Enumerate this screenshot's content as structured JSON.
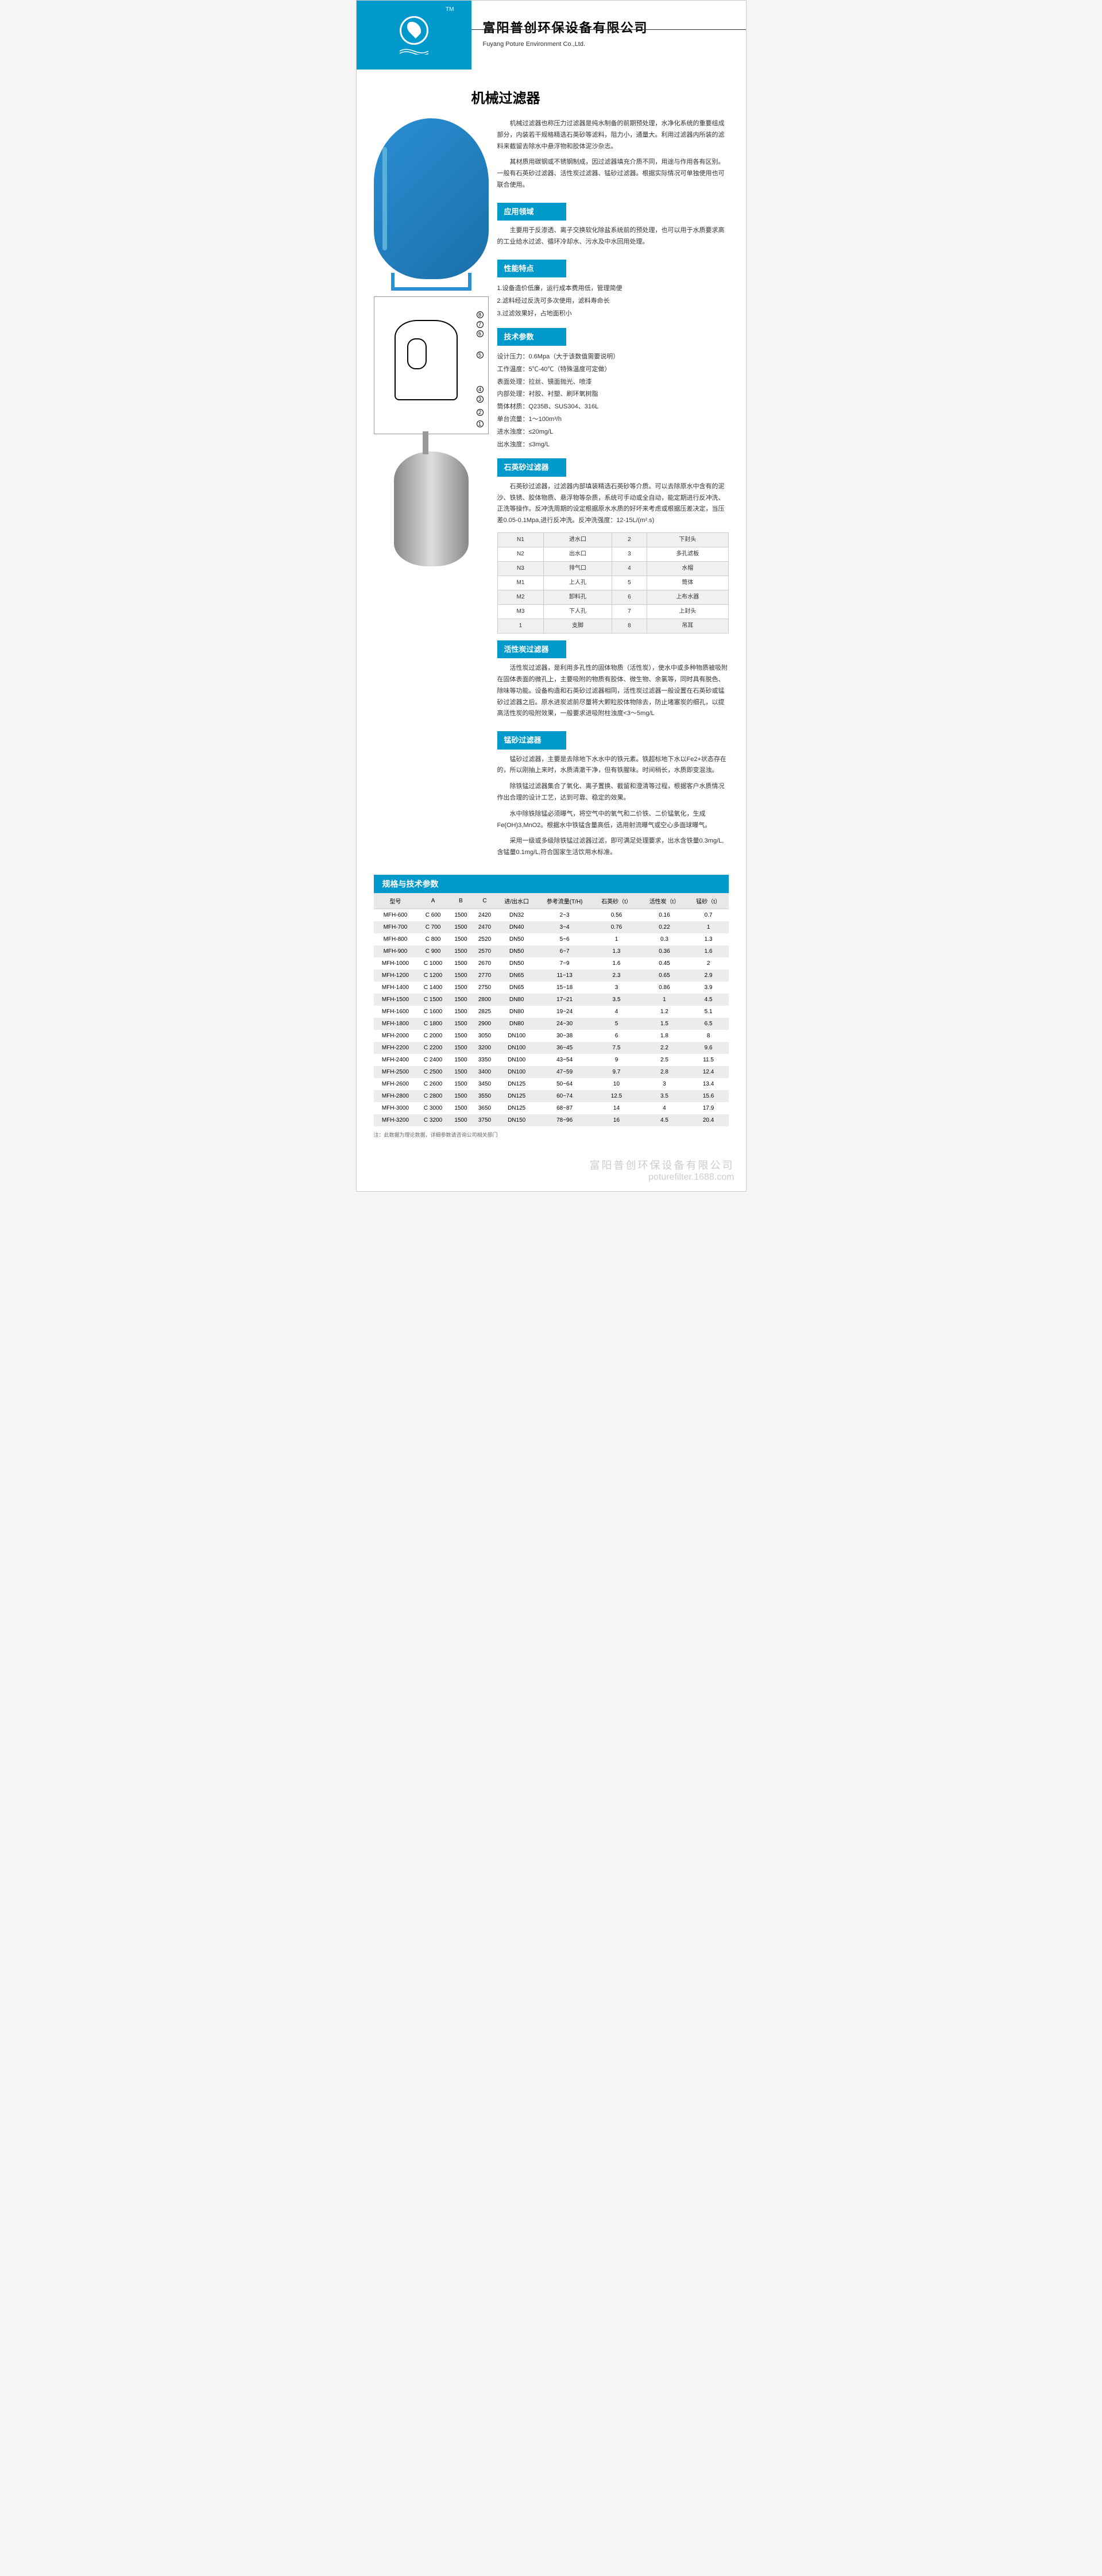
{
  "header": {
    "tm": "TM",
    "company_cn": "富阳普创环保设备有限公司",
    "company_en": "Fuyang Poture Environment Co.,Ltd."
  },
  "title": "机械过滤器",
  "intro": [
    "机械过滤器也称压力过滤器是纯水制备的前期预处理，水净化系统的重要组成部分，内装若干规格精选石英砂等滤料，阻力小，通量大。利用过滤器内所装的滤料来截留去除水中悬浮物和胶体泥沙杂志。",
    "其材质用碳钢或不锈钢制成，因过滤器填充介质不同，用途与作用各有区别。一般有石英砂过滤器、活性炭过滤器、锰砂过滤器。根据实际情况可单独使用也可联合使用。"
  ],
  "sections": {
    "s1": {
      "title": "应用领域",
      "text": "主要用于反渗透、离子交换软化除盐系统前的预处理，也可以用于水质要求高的工业给水过滤、循环冷却水、污水及中水回用处理。"
    },
    "s2": {
      "title": "性能特点",
      "items": [
        "1.设备造价低廉，运行成本费用低，管理简便",
        "2.滤料经过反洗可多次使用，滤料寿命长",
        "3.过滤效果好，占地面积小"
      ]
    },
    "s3": {
      "title": "技术参数",
      "params": [
        "设计压力：0.6Mpa（大于该数值需要说明）",
        "工作温度：5℃-40℃（特殊温度可定做）",
        "表面处理：拉丝、镜面抛光、喷漆",
        "内部处理：衬胶、衬塑、刷环氧树脂",
        "筒体材质：Q235B、SUS304、316L",
        "单台流量：1～100m³/h",
        "进水浊度：≤20mg/L",
        "出水浊度：≤3mg/L"
      ]
    },
    "s4": {
      "title": "石英砂过滤器",
      "text": "石英砂过滤器，过滤器内部填装精选石英砂等介质。可以去除原水中含有的泥沙、铁锈、胶体物质、悬浮物等杂质，系统可手动或全自动，能定期进行反冲洗、正洗等操作。反冲洗周期的设定根据原水水质的好坏来考虑或根据压差决定，当压差0.05-0.1Mpa,进行反冲洗。反冲洗强度：12-15L/(m².s)"
    },
    "s5": {
      "title": "活性炭过滤器",
      "text": "活性炭过滤器，是利用多孔性的固体物质（活性炭），使水中或多种物质被吸附在固体表面的微孔上，主要吸附的物质有胶体、微生物、余氯等，同时具有脱色、除味等功能。设备构造和石英砂过滤器相同，活性炭过滤器一般设置在石英砂或锰砂过滤器之后。原水进炭滤前尽量将大颗粒胶体物除去，防止堵塞炭的细孔，以提高活性炭的吸附效果，一般要求进吸附柱浊度<3～5mg/L"
    },
    "s6": {
      "title": "锰砂过滤器",
      "texts": [
        "锰砂过滤器，主要是去除地下水水中的铁元素。铁超标地下水以Fe2+状态存在的，所以刚抽上来时，水质清澈干净，但有铁腥味。时间稍长，水质即变混浊。",
        "除铁锰过滤器集合了氧化、离子置换、截留和澄清等过程，根据客户水质情况作出合理的设计工艺，达到可靠、稳定的效果。",
        "水中除铁除锰必须曝气，将空气中的氧气和二价铁、二价锰氧化，生成Fe(OH)3,MnO2。根据水中铁锰含量高低，选用射流曝气或空心多面球曝气。",
        "采用一级或多级除铁锰过滤器过滤，即可满足处理要求，出水含铁量0.3mg/L,含锰量0.1mg/L,符合国家生活饮用水标准。"
      ]
    }
  },
  "ports": {
    "rows": [
      [
        "N1",
        "进水口",
        "2",
        "下封头"
      ],
      [
        "N2",
        "出水口",
        "3",
        "多孔滤板"
      ],
      [
        "N3",
        "排气口",
        "4",
        "水帽"
      ],
      [
        "M1",
        "上人孔",
        "5",
        "筒体"
      ],
      [
        "M2",
        "卸料孔",
        "6",
        "上布水器"
      ],
      [
        "M3",
        "下人孔",
        "7",
        "上封头"
      ],
      [
        "1",
        "支脚",
        "8",
        "吊耳"
      ]
    ]
  },
  "specs": {
    "title": "规格与技术参数",
    "headers": [
      "型号",
      "A",
      "B",
      "C",
      "进/出水口",
      "参考流量(T/H)",
      "石英砂（t）",
      "活性炭（t）",
      "锰砂（t）"
    ],
    "rows": [
      [
        "MFH-600",
        "C 600",
        "1500",
        "2420",
        "DN32",
        "2~3",
        "0.56",
        "0.16",
        "0.7"
      ],
      [
        "MFH-700",
        "C 700",
        "1500",
        "2470",
        "DN40",
        "3~4",
        "0.76",
        "0.22",
        "1"
      ],
      [
        "MFH-800",
        "C 800",
        "1500",
        "2520",
        "DN50",
        "5~6",
        "1",
        "0.3",
        "1.3"
      ],
      [
        "MFH-900",
        "C 900",
        "1500",
        "2570",
        "DN50",
        "6~7",
        "1.3",
        "0.36",
        "1.6"
      ],
      [
        "MFH-1000",
        "C 1000",
        "1500",
        "2670",
        "DN50",
        "7~9",
        "1.6",
        "0.45",
        "2"
      ],
      [
        "MFH-1200",
        "C 1200",
        "1500",
        "2770",
        "DN65",
        "11~13",
        "2.3",
        "0.65",
        "2.9"
      ],
      [
        "MFH-1400",
        "C 1400",
        "1500",
        "2750",
        "DN65",
        "15~18",
        "3",
        "0.86",
        "3.9"
      ],
      [
        "MFH-1500",
        "C 1500",
        "1500",
        "2800",
        "DN80",
        "17~21",
        "3.5",
        "1",
        "4.5"
      ],
      [
        "MFH-1600",
        "C 1600",
        "1500",
        "2825",
        "DN80",
        "19~24",
        "4",
        "1.2",
        "5.1"
      ],
      [
        "MFH-1800",
        "C 1800",
        "1500",
        "2900",
        "DN80",
        "24~30",
        "5",
        "1.5",
        "6.5"
      ],
      [
        "MFH-2000",
        "C 2000",
        "1500",
        "3050",
        "DN100",
        "30~38",
        "6",
        "1.8",
        "8"
      ],
      [
        "MFH-2200",
        "C 2200",
        "1500",
        "3200",
        "DN100",
        "36~45",
        "7.5",
        "2.2",
        "9.6"
      ],
      [
        "MFH-2400",
        "C 2400",
        "1500",
        "3350",
        "DN100",
        "43~54",
        "9",
        "2.5",
        "11.5"
      ],
      [
        "MFH-2500",
        "C 2500",
        "1500",
        "3400",
        "DN100",
        "47~59",
        "9.7",
        "2.8",
        "12.4"
      ],
      [
        "MFH-2600",
        "C 2600",
        "1500",
        "3450",
        "DN125",
        "50~64",
        "10",
        "3",
        "13.4"
      ],
      [
        "MFH-2800",
        "C 2800",
        "1500",
        "3550",
        "DN125",
        "60~74",
        "12.5",
        "3.5",
        "15.6"
      ],
      [
        "MFH-3000",
        "C 3000",
        "1500",
        "3650",
        "DN125",
        "68~87",
        "14",
        "4",
        "17.9"
      ],
      [
        "MFH-3200",
        "C 3200",
        "1500",
        "3750",
        "DN150",
        "78~96",
        "16",
        "4.5",
        "20.4"
      ]
    ]
  },
  "note": "注：此数据为理论数据，详细参数请咨询公司相关部门",
  "watermark": {
    "cn": "富阳普创环保设备有限公司",
    "url": "poturefilter.1688.com"
  },
  "colors": {
    "primary": "#0099cc",
    "table_alt": "#ececec",
    "text": "#333333"
  }
}
